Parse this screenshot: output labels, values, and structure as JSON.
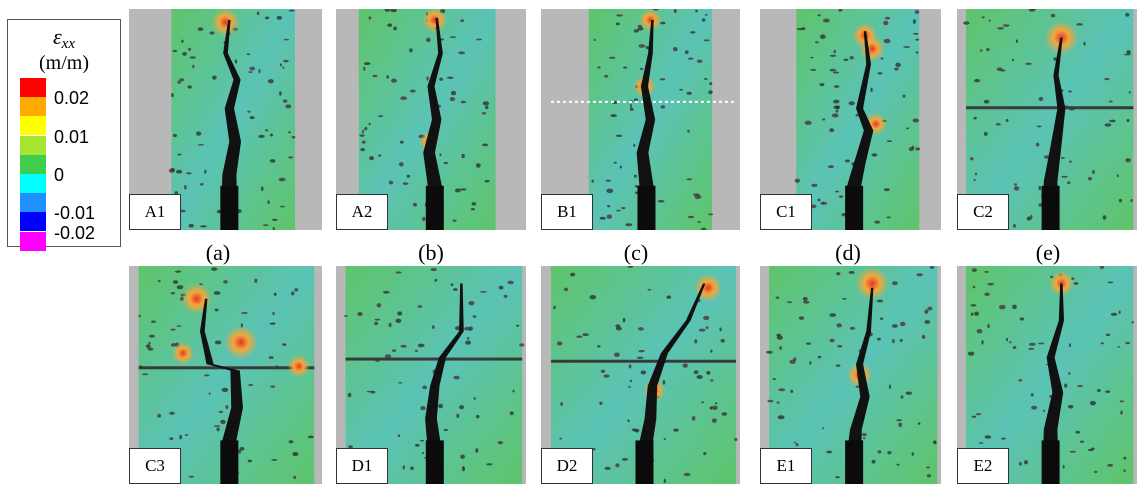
{
  "legend": {
    "symbol": "ε",
    "subscript": "xx",
    "unit": "(m/m)",
    "scale": [
      {
        "color": "#ff0000"
      },
      {
        "color": "#ffaa00",
        "label": "0.02"
      },
      {
        "color": "#ffff00"
      },
      {
        "color": "#a6e632",
        "label": "0.01"
      },
      {
        "color": "#3fcf4f"
      },
      {
        "color": "#00ffff",
        "label": "0"
      },
      {
        "color": "#1e90ff"
      },
      {
        "color": "#0000ff",
        "label": "-0.01"
      },
      {
        "color": "#ff00ff",
        "label": "-0.02"
      }
    ]
  },
  "panels": [
    {
      "id": "A1"
    },
    {
      "id": "A2"
    },
    {
      "id": "B1"
    },
    {
      "id": "C1"
    },
    {
      "id": "C2"
    },
    {
      "id": "C3"
    },
    {
      "id": "D1"
    },
    {
      "id": "D2"
    },
    {
      "id": "E1"
    },
    {
      "id": "E2"
    }
  ],
  "captions": [
    "(a)",
    "(b)",
    "(c)",
    "(d)",
    "(e)"
  ],
  "colors": {
    "concrete": "#b8b8b8",
    "strain_green": "#5fc46a",
    "strain_cyan": "#5bc3b6",
    "crack": "#111111",
    "hot_red": "#e2372a",
    "hot_orange": "#f4a63a"
  }
}
